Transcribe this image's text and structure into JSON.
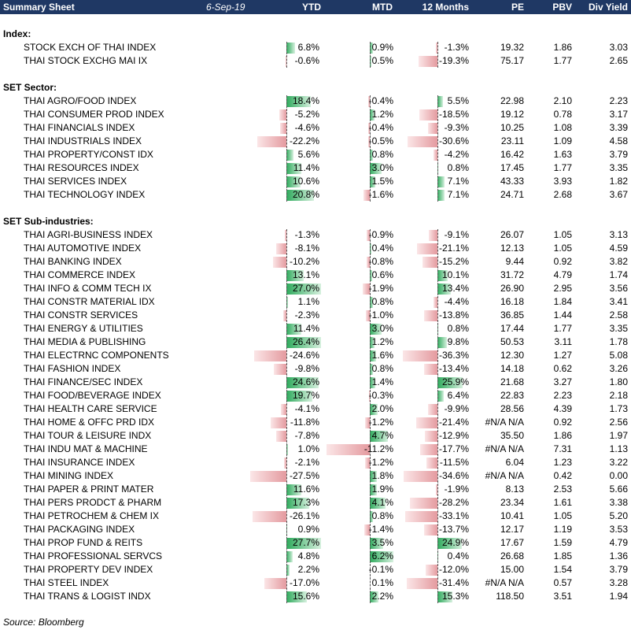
{
  "header": {
    "title": "Summary Sheet",
    "date": "6-Sep-19",
    "columns": [
      "YTD",
      "MTD",
      "12 Months",
      "PE",
      "PBV",
      "Div Yield"
    ]
  },
  "rows": [
    {
      "type": "blank"
    },
    {
      "type": "section",
      "label": "Index:"
    },
    {
      "type": "data",
      "name": "STOCK EXCH OF THAI INDEX",
      "ytd": "6.8%",
      "ytd_v": 6.8,
      "mtd": "0.9%",
      "mtd_v": 0.9,
      "m12": "-1.3%",
      "m12_v": -1.3,
      "pe": "19.32",
      "pbv": "1.86",
      "dy": "3.03"
    },
    {
      "type": "data",
      "name": "THAI STOCK EXCHG MAI IX",
      "ytd": "-0.6%",
      "ytd_v": -0.6,
      "mtd": "0.5%",
      "mtd_v": 0.5,
      "m12": "-19.3%",
      "m12_v": -19.3,
      "pe": "75.17",
      "pbv": "1.77",
      "dy": "2.65"
    },
    {
      "type": "blank"
    },
    {
      "type": "section",
      "label": "SET Sector:"
    },
    {
      "type": "data",
      "name": "THAI AGRO/FOOD INDEX",
      "ytd": "18.4%",
      "ytd_v": 18.4,
      "mtd": "-0.4%",
      "mtd_v": -0.4,
      "m12": "5.5%",
      "m12_v": 5.5,
      "pe": "22.98",
      "pbv": "2.10",
      "dy": "2.23"
    },
    {
      "type": "data",
      "name": "THAI CONSUMER PROD INDEX",
      "ytd": "-5.2%",
      "ytd_v": -5.2,
      "mtd": "1.2%",
      "mtd_v": 1.2,
      "m12": "-18.5%",
      "m12_v": -18.5,
      "pe": "19.12",
      "pbv": "0.78",
      "dy": "3.17"
    },
    {
      "type": "data",
      "name": "THAI FINANCIALS INDEX",
      "ytd": "-4.6%",
      "ytd_v": -4.6,
      "mtd": "-0.4%",
      "mtd_v": -0.4,
      "m12": "-9.3%",
      "m12_v": -9.3,
      "pe": "10.25",
      "pbv": "1.08",
      "dy": "3.39"
    },
    {
      "type": "data",
      "name": "THAI INDUSTRIALS INDEX",
      "ytd": "-22.2%",
      "ytd_v": -22.2,
      "mtd": "-0.5%",
      "mtd_v": -0.5,
      "m12": "-30.6%",
      "m12_v": -30.6,
      "pe": "23.11",
      "pbv": "1.09",
      "dy": "4.58"
    },
    {
      "type": "data",
      "name": "THAI PROPERTY/CONST IDX",
      "ytd": "5.6%",
      "ytd_v": 5.6,
      "mtd": "0.8%",
      "mtd_v": 0.8,
      "m12": "-4.2%",
      "m12_v": -4.2,
      "pe": "16.42",
      "pbv": "1.63",
      "dy": "3.79"
    },
    {
      "type": "data",
      "name": "THAI RESOURCES INDEX",
      "ytd": "11.4%",
      "ytd_v": 11.4,
      "mtd": "3.0%",
      "mtd_v": 3.0,
      "m12": "0.8%",
      "m12_v": 0.8,
      "pe": "17.45",
      "pbv": "1.77",
      "dy": "3.35"
    },
    {
      "type": "data",
      "name": "THAI SERVICES INDEX",
      "ytd": "10.6%",
      "ytd_v": 10.6,
      "mtd": "1.5%",
      "mtd_v": 1.5,
      "m12": "7.1%",
      "m12_v": 7.1,
      "pe": "43.33",
      "pbv": "3.93",
      "dy": "1.82"
    },
    {
      "type": "data",
      "name": "THAI TECHNOLOGY INDEX",
      "ytd": "20.8%",
      "ytd_v": 20.8,
      "mtd": "-1.6%",
      "mtd_v": -1.6,
      "m12": "7.1%",
      "m12_v": 7.1,
      "pe": "24.71",
      "pbv": "2.68",
      "dy": "3.67"
    },
    {
      "type": "blank"
    },
    {
      "type": "section",
      "label": "SET Sub-industries:"
    },
    {
      "type": "data",
      "name": "THAI AGRI-BUSINESS INDEX",
      "ytd": "-1.3%",
      "ytd_v": -1.3,
      "mtd": "-0.9%",
      "mtd_v": -0.9,
      "m12": "-9.1%",
      "m12_v": -9.1,
      "pe": "26.07",
      "pbv": "1.05",
      "dy": "3.13"
    },
    {
      "type": "data",
      "name": "THAI AUTOMOTIVE INDEX",
      "ytd": "-8.1%",
      "ytd_v": -8.1,
      "mtd": "0.4%",
      "mtd_v": 0.4,
      "m12": "-21.1%",
      "m12_v": -21.1,
      "pe": "12.13",
      "pbv": "1.05",
      "dy": "4.59"
    },
    {
      "type": "data",
      "name": "THAI BANKING INDEX",
      "ytd": "-10.2%",
      "ytd_v": -10.2,
      "mtd": "-0.8%",
      "mtd_v": -0.8,
      "m12": "-15.2%",
      "m12_v": -15.2,
      "pe": "9.44",
      "pbv": "0.92",
      "dy": "3.82"
    },
    {
      "type": "data",
      "name": "THAI COMMERCE INDEX",
      "ytd": "13.1%",
      "ytd_v": 13.1,
      "mtd": "0.6%",
      "mtd_v": 0.6,
      "m12": "10.1%",
      "m12_v": 10.1,
      "pe": "31.72",
      "pbv": "4.79",
      "dy": "1.74"
    },
    {
      "type": "data",
      "name": "THAI INFO & COMM TECH IX",
      "ytd": "27.0%",
      "ytd_v": 27.0,
      "mtd": "-1.9%",
      "mtd_v": -1.9,
      "m12": "13.4%",
      "m12_v": 13.4,
      "pe": "26.90",
      "pbv": "2.95",
      "dy": "3.56"
    },
    {
      "type": "data",
      "name": "THAI CONSTR MATERIAL IDX",
      "ytd": "1.1%",
      "ytd_v": 1.1,
      "mtd": "0.8%",
      "mtd_v": 0.8,
      "m12": "-4.4%",
      "m12_v": -4.4,
      "pe": "16.18",
      "pbv": "1.84",
      "dy": "3.41"
    },
    {
      "type": "data",
      "name": "THAI CONSTR SERVICES",
      "ytd": "-2.3%",
      "ytd_v": -2.3,
      "mtd": "-1.0%",
      "mtd_v": -1.0,
      "m12": "-13.8%",
      "m12_v": -13.8,
      "pe": "36.85",
      "pbv": "1.44",
      "dy": "2.58"
    },
    {
      "type": "data",
      "name": "THAI ENERGY & UTILITIES",
      "ytd": "11.4%",
      "ytd_v": 11.4,
      "mtd": "3.0%",
      "mtd_v": 3.0,
      "m12": "0.8%",
      "m12_v": 0.8,
      "pe": "17.44",
      "pbv": "1.77",
      "dy": "3.35"
    },
    {
      "type": "data",
      "name": "THAI MEDIA & PUBLISHING",
      "ytd": "26.4%",
      "ytd_v": 26.4,
      "mtd": "1.2%",
      "mtd_v": 1.2,
      "m12": "9.8%",
      "m12_v": 9.8,
      "pe": "50.53",
      "pbv": "3.11",
      "dy": "1.78"
    },
    {
      "type": "data",
      "name": "THAI ELECTRNC COMPONENTS",
      "ytd": "-24.6%",
      "ytd_v": -24.6,
      "mtd": "1.6%",
      "mtd_v": 1.6,
      "m12": "-36.3%",
      "m12_v": -36.3,
      "pe": "12.30",
      "pbv": "1.27",
      "dy": "5.08"
    },
    {
      "type": "data",
      "name": "THAI FASHION INDEX",
      "ytd": "-9.8%",
      "ytd_v": -9.8,
      "mtd": "0.8%",
      "mtd_v": 0.8,
      "m12": "-13.4%",
      "m12_v": -13.4,
      "pe": "14.18",
      "pbv": "0.62",
      "dy": "3.26"
    },
    {
      "type": "data",
      "name": "THAI FINANCE/SEC INDEX",
      "ytd": "24.6%",
      "ytd_v": 24.6,
      "mtd": "1.4%",
      "mtd_v": 1.4,
      "m12": "25.9%",
      "m12_v": 25.9,
      "pe": "21.68",
      "pbv": "3.27",
      "dy": "1.80"
    },
    {
      "type": "data",
      "name": "THAI FOOD/BEVERAGE INDEX",
      "ytd": "19.7%",
      "ytd_v": 19.7,
      "mtd": "-0.3%",
      "mtd_v": -0.3,
      "m12": "6.4%",
      "m12_v": 6.4,
      "pe": "22.83",
      "pbv": "2.23",
      "dy": "2.18"
    },
    {
      "type": "data",
      "name": "THAI HEALTH CARE SERVICE",
      "ytd": "-4.1%",
      "ytd_v": -4.1,
      "mtd": "2.0%",
      "mtd_v": 2.0,
      "m12": "-9.9%",
      "m12_v": -9.9,
      "pe": "28.56",
      "pbv": "4.39",
      "dy": "1.73"
    },
    {
      "type": "data",
      "name": "THAI HOME & OFFC PRD IDX",
      "ytd": "-11.8%",
      "ytd_v": -11.8,
      "mtd": "-1.2%",
      "mtd_v": -1.2,
      "m12": "-21.4%",
      "m12_v": -21.4,
      "pe": "#N/A N/A",
      "pbv": "0.92",
      "dy": "2.56"
    },
    {
      "type": "data",
      "name": "THAI TOUR & LEISURE INDX",
      "ytd": "-7.8%",
      "ytd_v": -7.8,
      "mtd": "4.7%",
      "mtd_v": 4.7,
      "m12": "-12.9%",
      "m12_v": -12.9,
      "pe": "35.50",
      "pbv": "1.86",
      "dy": "1.97"
    },
    {
      "type": "data",
      "name": "THAI INDU MAT & MACHINE",
      "ytd": "1.0%",
      "ytd_v": 1.0,
      "mtd": "-11.2%",
      "mtd_v": -11.2,
      "m12": "-17.7%",
      "m12_v": -17.7,
      "pe": "#N/A N/A",
      "pbv": "7.31",
      "dy": "1.13"
    },
    {
      "type": "data",
      "name": "THAI INSURANCE INDEX",
      "ytd": "-2.1%",
      "ytd_v": -2.1,
      "mtd": "-1.2%",
      "mtd_v": -1.2,
      "m12": "-11.5%",
      "m12_v": -11.5,
      "pe": "6.04",
      "pbv": "1.23",
      "dy": "3.22"
    },
    {
      "type": "data",
      "name": "THAI MINING INDEX",
      "ytd": "-27.5%",
      "ytd_v": -27.5,
      "mtd": "1.8%",
      "mtd_v": 1.8,
      "m12": "-34.6%",
      "m12_v": -34.6,
      "pe": "#N/A N/A",
      "pbv": "0.42",
      "dy": "0.00"
    },
    {
      "type": "data",
      "name": "THAI PAPER & PRINT MATER",
      "ytd": "11.6%",
      "ytd_v": 11.6,
      "mtd": "1.9%",
      "mtd_v": 1.9,
      "m12": "-1.9%",
      "m12_v": -1.9,
      "pe": "8.13",
      "pbv": "2.53",
      "dy": "5.66"
    },
    {
      "type": "data",
      "name": "THAI PERS PRODCT & PHARM",
      "ytd": "17.3%",
      "ytd_v": 17.3,
      "mtd": "4.1%",
      "mtd_v": 4.1,
      "m12": "-28.2%",
      "m12_v": -28.2,
      "pe": "23.34",
      "pbv": "1.61",
      "dy": "3.38"
    },
    {
      "type": "data",
      "name": "THAI PETROCHEM & CHEM IX",
      "ytd": "-26.1%",
      "ytd_v": -26.1,
      "mtd": "0.8%",
      "mtd_v": 0.8,
      "m12": "-33.1%",
      "m12_v": -33.1,
      "pe": "10.41",
      "pbv": "1.05",
      "dy": "5.20"
    },
    {
      "type": "data",
      "name": "THAI PACKAGING INDEX",
      "ytd": "0.9%",
      "ytd_v": 0.9,
      "mtd": "-1.4%",
      "mtd_v": -1.4,
      "m12": "-13.7%",
      "m12_v": -13.7,
      "pe": "12.17",
      "pbv": "1.19",
      "dy": "3.53"
    },
    {
      "type": "data",
      "name": "THAI PROP FUND & REITS",
      "ytd": "27.7%",
      "ytd_v": 27.7,
      "mtd": "3.5%",
      "mtd_v": 3.5,
      "m12": "24.9%",
      "m12_v": 24.9,
      "pe": "17.67",
      "pbv": "1.59",
      "dy": "4.79"
    },
    {
      "type": "data",
      "name": "THAI PROFESSIONAL SERVCS",
      "ytd": "4.8%",
      "ytd_v": 4.8,
      "mtd": "6.2%",
      "mtd_v": 6.2,
      "m12": "0.4%",
      "m12_v": 0.4,
      "pe": "26.68",
      "pbv": "1.85",
      "dy": "1.36"
    },
    {
      "type": "data",
      "name": "THAI PROPERTY DEV INDEX",
      "ytd": "2.2%",
      "ytd_v": 2.2,
      "mtd": "-0.1%",
      "mtd_v": -0.1,
      "m12": "-12.0%",
      "m12_v": -12.0,
      "pe": "15.00",
      "pbv": "1.54",
      "dy": "3.79"
    },
    {
      "type": "data",
      "name": "THAI STEEL INDEX",
      "ytd": "-17.0%",
      "ytd_v": -17.0,
      "mtd": "0.1%",
      "mtd_v": 0.1,
      "m12": "-31.4%",
      "m12_v": -31.4,
      "pe": "#N/A N/A",
      "pbv": "0.57",
      "dy": "3.28"
    },
    {
      "type": "data",
      "name": "THAI TRANS & LOGIST INDX",
      "ytd": "15.6%",
      "ytd_v": 15.6,
      "mtd": "2.2%",
      "mtd_v": 2.2,
      "m12": "15.3%",
      "m12_v": 15.3,
      "pe": "118.50",
      "pbv": "3.51",
      "dy": "1.94"
    }
  ],
  "source": "Source: Bloomberg",
  "colors": {
    "header_bg": "#1f3864",
    "positive_bar": "#2eaa5c",
    "negative_bar": "#e49a9f"
  }
}
